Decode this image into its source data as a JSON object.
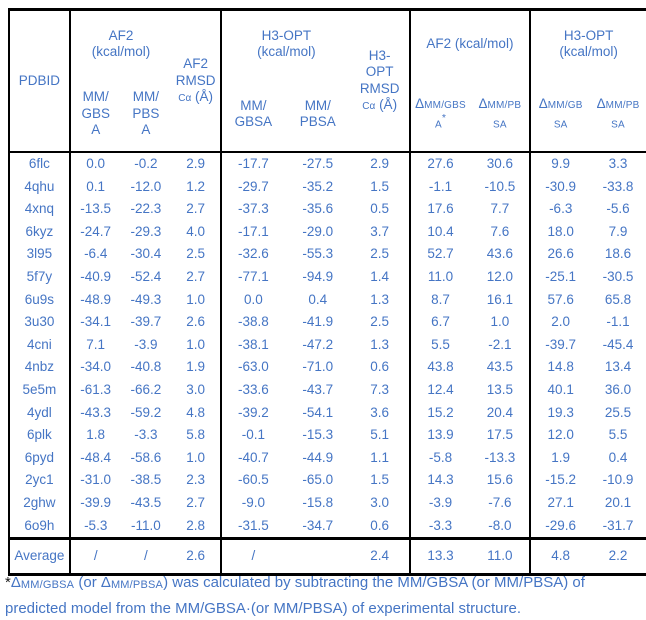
{
  "colors": {
    "text_blue": "#4575c4",
    "border_black": "#000000"
  },
  "table": {
    "header": {
      "pdbid": "PDBID",
      "af2_group": {
        "title": "AF2\n(kcal/mol)",
        "col1": "MM/\nGBS\nA",
        "col2": "MM/\nPBS\nA"
      },
      "af2_rmsd": {
        "lines": "AF2\nRMSD",
        "sub": "Cα",
        "unit": " (Å)"
      },
      "h3_group": {
        "title": "H3-OPT\n(kcal/mol)",
        "col1": "MM/\nGBSA",
        "col2": "MM/\nPBSA"
      },
      "h3_rmsd": {
        "lines": "H3-\nOPT\nRMSD",
        "sub": "Cα",
        "unit": " (Å)"
      },
      "af2_delta_group": {
        "title": "AF2 (kcal/mol)",
        "col1": {
          "sym": "Δ",
          "sub1": "MM/GBS",
          "sub2": "A",
          "sup": "*"
        },
        "col2": {
          "sym": "Δ",
          "sub1": "MM/PB",
          "sub2": "SA",
          "sup": ""
        }
      },
      "h3_delta_group": {
        "title": "H3-OPT\n(kcal/mol)",
        "col1": {
          "sym": "Δ",
          "sub1": "MM/GB",
          "sub2": "SA",
          "sup": ""
        },
        "col2": {
          "sym": "Δ",
          "sub1": "MM/PB",
          "sub2": "SA",
          "sup": ""
        }
      }
    },
    "columns_order": [
      "PDBID",
      "AF2 MM/GBSA",
      "AF2 MM/PBSA",
      "AF2 RMSD Cα (Å)",
      "H3-OPT MM/GBSA",
      "H3-OPT MM/PBSA",
      "H3-OPT RMSD Cα (Å)",
      "AF2 ΔMM/GBSA*",
      "AF2 ΔMM/PBSA",
      "H3-OPT ΔMM/GBSA",
      "H3-OPT ΔMM/PBSA"
    ],
    "rows": [
      {
        "pdbid": "6flc",
        "values": [
          "0.0",
          "-0.2",
          "2.9",
          "-17.7",
          "-27.5",
          "2.9",
          "27.6",
          "30.6",
          "9.9",
          "3.3"
        ]
      },
      {
        "pdbid": "4qhu",
        "values": [
          "0.1",
          "-12.0",
          "1.2",
          "-29.7",
          "-35.2",
          "1.5",
          "-1.1",
          "-10.5",
          "-30.9",
          "-33.8"
        ]
      },
      {
        "pdbid": "4xnq",
        "values": [
          "-13.5",
          "-22.3",
          "2.7",
          "-37.3",
          "-35.6",
          "0.5",
          "17.6",
          "7.7",
          "-6.3",
          "-5.6"
        ]
      },
      {
        "pdbid": "6kyz",
        "values": [
          "-24.7",
          "-29.3",
          "4.0",
          "-17.1",
          "-29.0",
          "3.7",
          "10.4",
          "7.6",
          "18.0",
          "7.9"
        ]
      },
      {
        "pdbid": "3l95",
        "values": [
          "-6.4",
          "-30.4",
          "2.5",
          "-32.6",
          "-55.3",
          "2.5",
          "52.7",
          "43.6",
          "26.6",
          "18.6"
        ]
      },
      {
        "pdbid": "5f7y",
        "values": [
          "-40.9",
          "-52.4",
          "2.7",
          "-77.1",
          "-94.9",
          "1.4",
          "11.0",
          "12.0",
          "-25.1",
          "-30.5"
        ]
      },
      {
        "pdbid": "6u9s",
        "values": [
          "-48.9",
          "-49.3",
          "1.0",
          "0.0",
          "0.4",
          "1.3",
          "8.7",
          "16.1",
          "57.6",
          "65.8"
        ]
      },
      {
        "pdbid": "3u30",
        "values": [
          "-34.1",
          "-39.7",
          "2.6",
          "-38.8",
          "-41.9",
          "2.5",
          "6.7",
          "1.0",
          "2.0",
          "-1.1"
        ]
      },
      {
        "pdbid": "4cni",
        "values": [
          "7.1",
          "-3.9",
          "1.0",
          "-38.1",
          "-47.2",
          "1.3",
          "5.5",
          "-2.1",
          "-39.7",
          "-45.4"
        ]
      },
      {
        "pdbid": "4nbz",
        "values": [
          "-34.0",
          "-40.8",
          "1.9",
          "-63.0",
          "-71.0",
          "0.6",
          "43.8",
          "43.5",
          "14.8",
          "13.4"
        ]
      },
      {
        "pdbid": "5e5m",
        "values": [
          "-61.3",
          "-66.2",
          "3.0",
          "-33.6",
          "-43.7",
          "7.3",
          "12.4",
          "13.5",
          "40.1",
          "36.0"
        ]
      },
      {
        "pdbid": "4ydl",
        "values": [
          "-43.3",
          "-59.2",
          "4.8",
          "-39.2",
          "-54.1",
          "3.6",
          "15.2",
          "20.4",
          "19.3",
          "25.5"
        ]
      },
      {
        "pdbid": "6plk",
        "values": [
          "1.8",
          "-3.3",
          "5.8",
          "-0.1",
          "-15.3",
          "5.1",
          "13.9",
          "17.5",
          "12.0",
          "5.5"
        ]
      },
      {
        "pdbid": "6pyd",
        "values": [
          "-48.4",
          "-58.6",
          "1.0",
          "-40.7",
          "-44.9",
          "1.1",
          "-5.8",
          "-13.3",
          "1.9",
          "0.4"
        ]
      },
      {
        "pdbid": "2yc1",
        "values": [
          "-31.0",
          "-38.5",
          "2.3",
          "-60.5",
          "-65.0",
          "1.5",
          "14.3",
          "15.6",
          "-15.2",
          "-10.9"
        ]
      },
      {
        "pdbid": "2ghw",
        "values": [
          "-39.9",
          "-43.5",
          "2.7",
          "-9.0",
          "-15.8",
          "3.0",
          "-3.9",
          "-7.6",
          "27.1",
          "20.1"
        ]
      },
      {
        "pdbid": "6o9h",
        "values": [
          "-5.3",
          "-11.0",
          "2.8",
          "-31.5",
          "-34.7",
          "0.6",
          "-3.3",
          "-8.0",
          "-29.6",
          "-31.7"
        ]
      },
      {
        "pdbid": "Average",
        "average": true,
        "values": [
          "/",
          "/",
          "2.6",
          "/",
          "",
          "2.4",
          "13.3",
          "11.0",
          "4.8",
          "2.2"
        ]
      }
    ]
  },
  "footnote": {
    "asterisk": "*",
    "delta1": "Δ",
    "sub1": "MM/GBSA",
    "mid": " (or ",
    "delta2": "Δ",
    "sub2": "MM/PBSA",
    "rest": ") was calculated by subtracting the MM/GBSA (or MM/PBSA) of predicted model from the MM/GBSA·(or MM/PBSA) of experimental structure."
  }
}
